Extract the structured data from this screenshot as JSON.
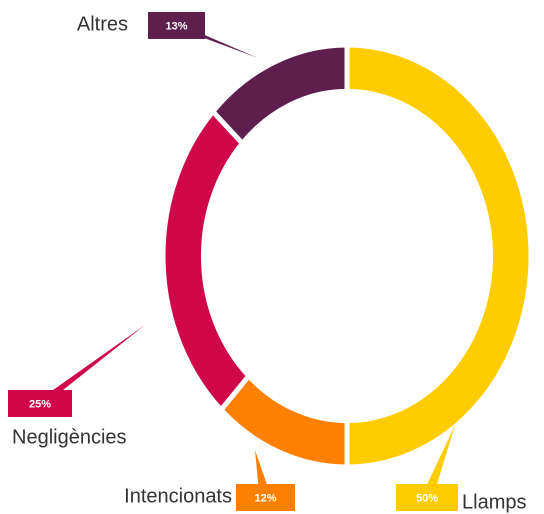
{
  "chart_data": {
    "type": "donut",
    "categories": [
      "Llamps",
      "Intencionats",
      "Negligències",
      "Altres"
    ],
    "values": [
      50,
      12,
      25,
      13
    ],
    "value_labels": [
      "50%",
      "12%",
      "25%",
      "13%"
    ],
    "colors": [
      "#FFCC00",
      "#FF8000",
      "#D0084A",
      "#5E1F4E"
    ]
  }
}
